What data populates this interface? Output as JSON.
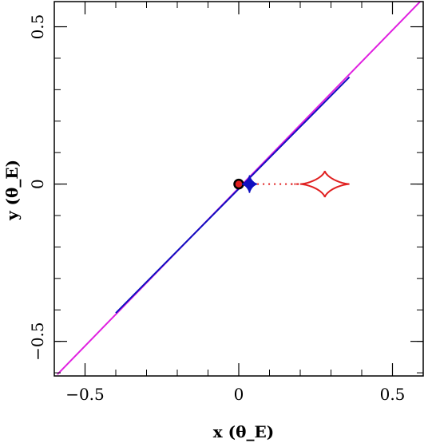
{
  "chart_data": {
    "type": "scatter",
    "xlabel": "x (θ_E)",
    "ylabel": "y (θ_E)",
    "xlim": [
      -0.6,
      0.6
    ],
    "ylim": [
      -0.61,
      0.58
    ],
    "x_ticks": [
      {
        "value": -0.5,
        "label": "−0.5"
      },
      {
        "value": 0,
        "label": "0"
      },
      {
        "value": 0.5,
        "label": "0.5"
      }
    ],
    "y_ticks": [
      {
        "value": -0.5,
        "label": "−0.5"
      },
      {
        "value": 0,
        "label": "0"
      },
      {
        "value": 0.5,
        "label": "0.5"
      }
    ],
    "minor_tick_step": 0.1,
    "grid": false,
    "colors": {
      "trajectory_outer": "#e020e0",
      "trajectory_inner": "#1010c0",
      "caustic": "#e02020",
      "lens": "#000000",
      "axes": "#000000"
    },
    "series": [
      {
        "kind": "line",
        "role": "source-trajectory",
        "x": [
          -0.59,
          0.6
        ],
        "y": [
          -0.605,
          0.59
        ]
      },
      {
        "kind": "line",
        "role": "source-trajectory-inner",
        "x": [
          -0.4,
          0.36
        ],
        "y": [
          -0.41,
          0.34
        ]
      },
      {
        "kind": "point",
        "role": "lens",
        "x": 0.0,
        "y": 0.0
      },
      {
        "kind": "caustic",
        "role": "small-caustic",
        "center": [
          0.035,
          0.0
        ],
        "half_width": 0.025,
        "half_height": 0.028
      },
      {
        "kind": "caustic",
        "role": "large-caustic",
        "center": [
          0.28,
          0.0
        ],
        "half_width": 0.08,
        "half_height": 0.042
      },
      {
        "kind": "dotted",
        "role": "caustic-bridge",
        "x": [
          0.06,
          0.2
        ],
        "y": [
          0.0,
          0.0
        ]
      }
    ]
  }
}
